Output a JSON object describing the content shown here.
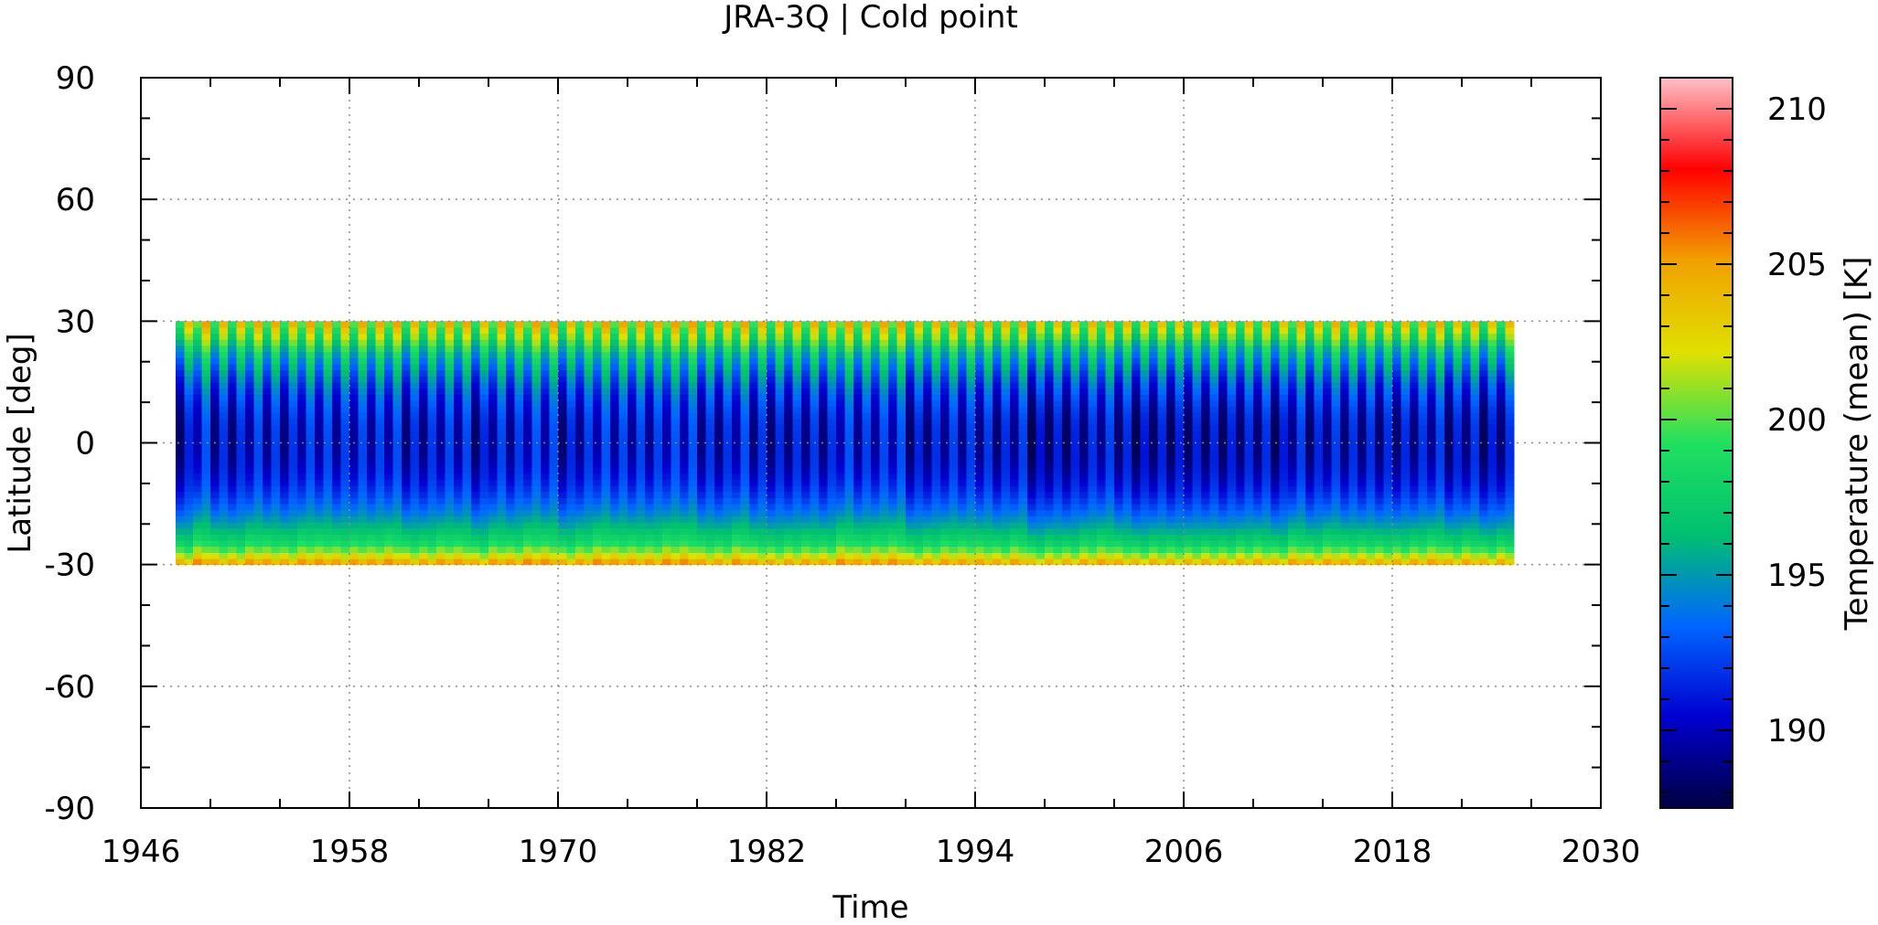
{
  "chart_data": {
    "type": "heatmap",
    "title": "JRA-3Q | Cold point",
    "xlabel": "Time",
    "ylabel": "Latitude [deg]",
    "colorbar_label": "Temperature (mean) [K]",
    "xlim": [
      1946,
      2030
    ],
    "ylim": [
      -90,
      90
    ],
    "x_ticks": [
      "1946",
      "1958",
      "1970",
      "1982",
      "1994",
      "2006",
      "2018",
      "2030"
    ],
    "y_ticks": [
      "-90",
      "-60",
      "-30",
      "0",
      "30",
      "60",
      "90"
    ],
    "colorbar_ticks": [
      "190",
      "195",
      "200",
      "205",
      "210"
    ],
    "colorbar_range": [
      187.5,
      211
    ],
    "data_time_range": [
      1948,
      2025
    ],
    "data_lat_range": [
      -30,
      30
    ],
    "grid": true,
    "colormap": [
      "#000040",
      "#0000d0",
      "#0066ff",
      "#00c070",
      "#20e060",
      "#e0e000",
      "#f0a000",
      "#ff0000",
      "#ffc0c8"
    ]
  }
}
